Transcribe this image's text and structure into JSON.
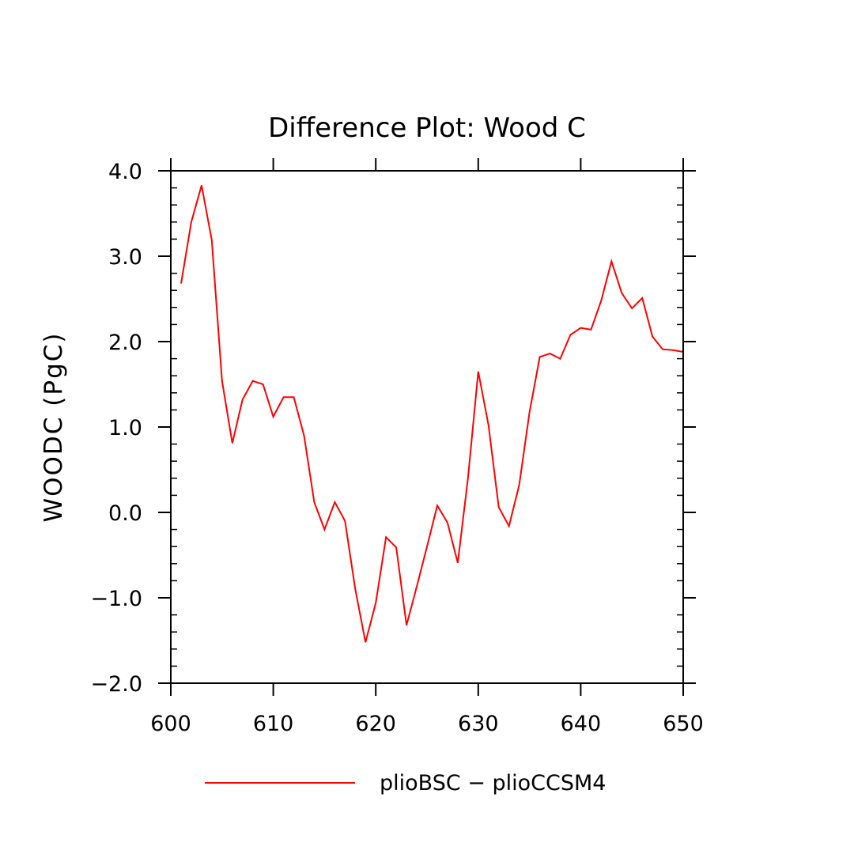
{
  "chart_data": {
    "type": "line",
    "title": "Difference Plot: Wood C",
    "xlabel": "",
    "ylabel": "WOODC  (PgC)",
    "xlim": [
      600,
      650
    ],
    "ylim": [
      -2.0,
      4.0
    ],
    "x_ticks": [
      "600",
      "610",
      "620",
      "630",
      "640",
      "650"
    ],
    "y_ticks": [
      "−2.0",
      "−1.0",
      "0.0",
      "1.0",
      "2.0",
      "3.0",
      "4.0"
    ],
    "legend_position": "bottom",
    "grid": false,
    "series": [
      {
        "name": "plioBSC − plioCCSM4",
        "color": "#ff0000",
        "x": [
          601,
          602,
          603,
          604,
          605,
          606,
          607,
          608,
          609,
          610,
          611,
          612,
          613,
          614,
          615,
          616,
          617,
          618,
          619,
          620,
          621,
          622,
          623,
          624,
          625,
          626,
          627,
          628,
          629,
          630,
          631,
          632,
          633,
          634,
          635,
          636,
          637,
          638,
          639,
          640,
          641,
          642,
          643,
          644,
          645,
          646,
          647,
          648,
          649,
          650
        ],
        "values": [
          2.68,
          3.4,
          3.83,
          3.19,
          1.54,
          0.81,
          1.32,
          1.54,
          1.5,
          1.12,
          1.35,
          1.35,
          0.9,
          0.12,
          -0.2,
          0.12,
          -0.1,
          -0.9,
          -1.52,
          -1.06,
          -0.29,
          -0.41,
          -1.32,
          -0.87,
          -0.4,
          0.08,
          -0.12,
          -0.59,
          0.4,
          1.65,
          1.02,
          0.06,
          -0.16,
          0.32,
          1.17,
          1.82,
          1.86,
          1.8,
          2.08,
          2.16,
          2.14,
          2.48,
          2.94,
          2.57,
          2.39,
          2.51,
          2.06,
          1.91,
          1.9,
          1.88
        ]
      }
    ]
  }
}
